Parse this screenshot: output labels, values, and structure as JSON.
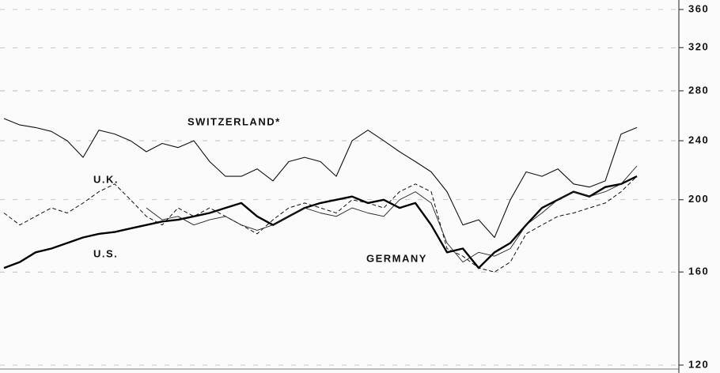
{
  "chart_data": {
    "type": "line",
    "log_scale": true,
    "grid": true,
    "categories": [
      null,
      null,
      null,
      null,
      null,
      null,
      null,
      null,
      null,
      null,
      null,
      null,
      null,
      null,
      null,
      null,
      null,
      null,
      null,
      null,
      null,
      null,
      null,
      null,
      null,
      null,
      null,
      null,
      null,
      null,
      null,
      null,
      null,
      null,
      null,
      null,
      null,
      null,
      null,
      null,
      null
    ],
    "series": [
      {
        "name": "SWITZERLAND*",
        "color": "#111111",
        "dash": "none",
        "width": 1.1,
        "values": [
          257,
          252,
          250,
          247,
          240,
          228,
          248,
          245,
          240,
          232,
          238,
          235,
          240,
          225,
          215,
          215,
          220,
          212,
          225,
          228,
          225,
          215,
          240,
          248,
          240,
          232,
          225,
          218,
          205,
          185,
          188,
          178,
          200,
          218,
          215,
          220,
          210,
          208,
          212,
          245,
          250
        ]
      },
      {
        "name": "U.K.",
        "color": "#111111",
        "dash": "5 3",
        "width": 1,
        "values": [
          192,
          185,
          190,
          195,
          192,
          198,
          205,
          210,
          200,
          190,
          185,
          195,
          190,
          195,
          190,
          185,
          180,
          188,
          195,
          198,
          195,
          192,
          200,
          198,
          195,
          205,
          210,
          205,
          172,
          168,
          162,
          160,
          165,
          180,
          185,
          190,
          192,
          195,
          198,
          205,
          215
        ]
      },
      {
        "name": "U.S.",
        "color": "#000000",
        "dash": "none",
        "width": 2.4,
        "values": [
          162,
          165,
          170,
          172,
          175,
          178,
          180,
          181,
          183,
          185,
          187,
          188,
          190,
          192,
          195,
          198,
          190,
          185,
          190,
          195,
          198,
          200,
          202,
          198,
          200,
          195,
          198,
          185,
          170,
          172,
          162,
          170,
          175,
          185,
          195,
          200,
          205,
          202,
          208,
          210,
          215
        ]
      },
      {
        "name": "GERMANY",
        "color": "#222222",
        "dash": "none",
        "width": 0.9,
        "values": [
          null,
          null,
          null,
          null,
          null,
          null,
          null,
          null,
          null,
          195,
          188,
          190,
          185,
          188,
          190,
          185,
          182,
          185,
          190,
          195,
          192,
          190,
          195,
          192,
          190,
          200,
          205,
          198,
          175,
          165,
          170,
          168,
          172,
          185,
          192,
          200,
          205,
          202,
          205,
          210,
          222
        ]
      }
    ],
    "ylim": [
      120,
      360
    ],
    "yticks": [
      120,
      160,
      200,
      240,
      280,
      320,
      360
    ]
  }
}
